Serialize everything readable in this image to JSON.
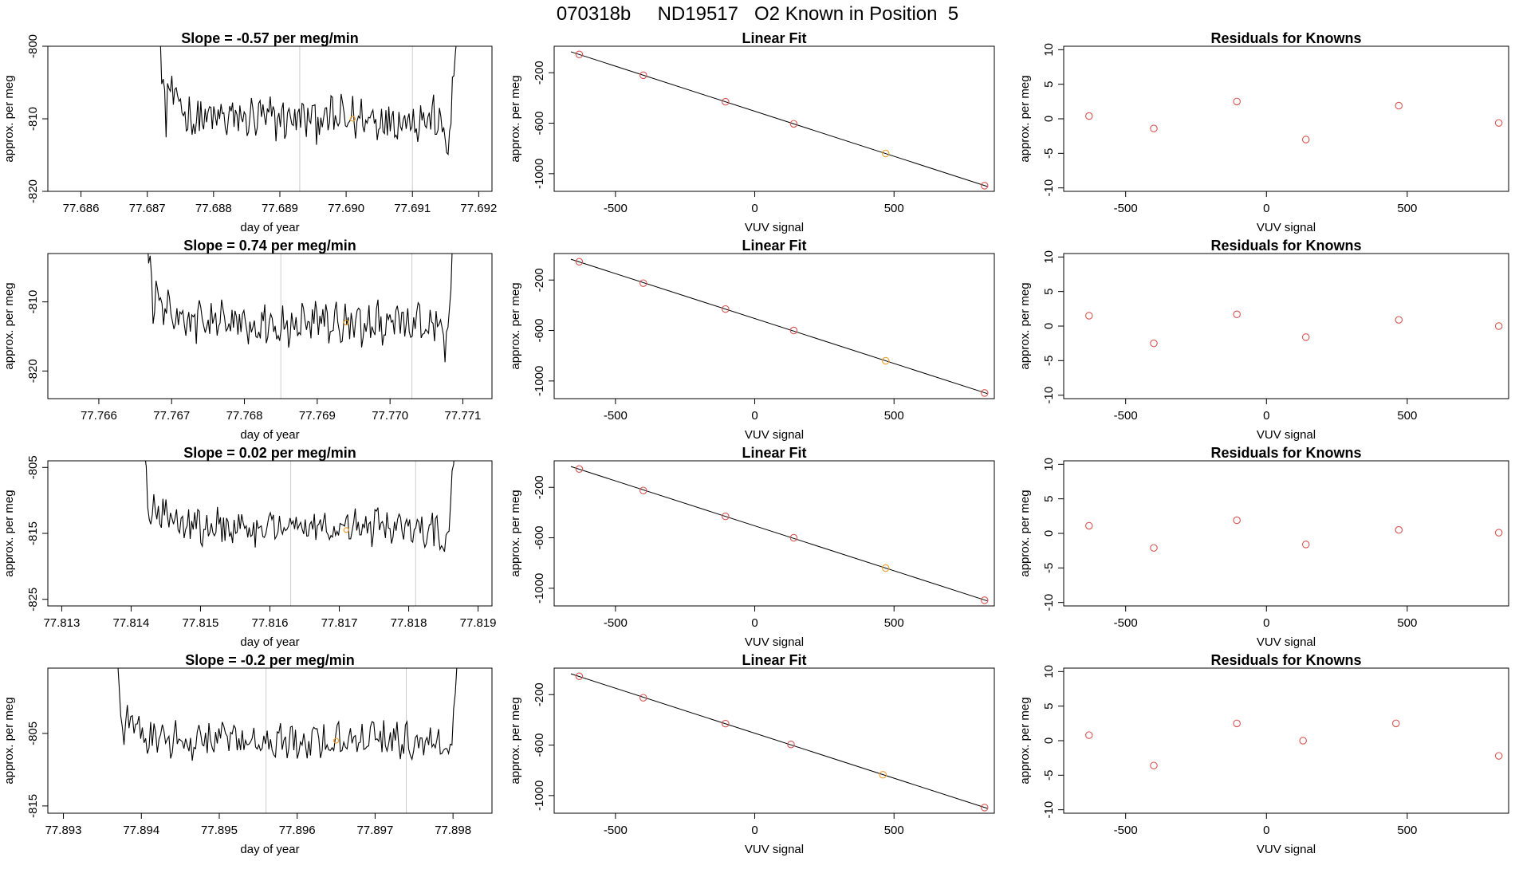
{
  "page": {
    "title": "070318b     ND19517   O2 Known in Position  5"
  },
  "colors": {
    "line": "#000000",
    "fit_point": "#d9534f",
    "highlight": "#f0a030",
    "marker_line": "#cccccc",
    "axis": "#000000"
  },
  "chart_data": [
    {
      "type": "line",
      "row": 0,
      "panel": "time",
      "title": "Slope =  -0.57  per meg/min",
      "xlabel": "day of year",
      "ylabel": "approx. per meg",
      "xlim": [
        77.6855,
        77.6922
      ],
      "ylim": [
        -820,
        -800
      ],
      "xticks": [
        77.686,
        77.687,
        77.688,
        77.689,
        77.69,
        77.691,
        77.692
      ],
      "xtick_labels": [
        "77.686",
        "77.687",
        "77.688",
        "77.689",
        "77.690",
        "77.691",
        "77.692"
      ],
      "yticks": [
        -820,
        -810,
        -800
      ],
      "ytick_labels": [
        "-820",
        "-810",
        "-800"
      ],
      "x_start": 77.687,
      "x_end": 77.6918,
      "baseline": -810,
      "noise": 2.0,
      "markers": [
        77.6893,
        77.691
      ],
      "highlight": [
        77.6901,
        -810
      ]
    },
    {
      "type": "scatter",
      "row": 0,
      "panel": "fit",
      "title": "Linear Fit",
      "xlabel": "VUV signal",
      "ylabel": "approx. per meg",
      "xlim": [
        -720,
        860
      ],
      "ylim": [
        -1140,
        10
      ],
      "xticks": [
        -500,
        0,
        500
      ],
      "xtick_labels": [
        "-500",
        "0",
        "500"
      ],
      "yticks": [
        -200,
        -600,
        -1000
      ],
      "ytick_labels": [
        "-200",
        "-600",
        "-1000"
      ],
      "x": [
        -630,
        -400,
        -105,
        140,
        470,
        825
      ],
      "y": [
        -55,
        -220,
        -430,
        -605,
        -840,
        -1095
      ],
      "highlight_index": 4
    },
    {
      "type": "scatter",
      "row": 0,
      "panel": "resid",
      "title": "Residuals for Knowns",
      "xlabel": "VUV signal",
      "ylabel": "approx. per meg",
      "xlim": [
        -720,
        860
      ],
      "ylim": [
        -10.5,
        10.5
      ],
      "xticks": [
        -500,
        0,
        500
      ],
      "xtick_labels": [
        "-500",
        "0",
        "500"
      ],
      "yticks": [
        -10,
        -5,
        0,
        5,
        10
      ],
      "ytick_labels": [
        "-10",
        "-5",
        "0",
        "5",
        "10"
      ],
      "x": [
        -630,
        -400,
        -105,
        140,
        470,
        825
      ],
      "y": [
        0.4,
        -1.4,
        2.5,
        -3.0,
        1.9,
        -0.6
      ]
    },
    {
      "type": "line",
      "row": 1,
      "panel": "time",
      "title": "Slope =  0.74  per meg/min",
      "xlabel": "day of year",
      "ylabel": "approx. per meg",
      "xlim": [
        77.7653,
        77.7714
      ],
      "ylim": [
        -824,
        -803
      ],
      "xticks": [
        77.766,
        77.767,
        77.768,
        77.769,
        77.77,
        77.771
      ],
      "xtick_labels": [
        "77.766",
        "77.767",
        "77.768",
        "77.769",
        "77.770",
        "77.771"
      ],
      "yticks": [
        -820,
        -810
      ],
      "ytick_labels": [
        "-820",
        "-810"
      ],
      "x_start": 77.7665,
      "x_end": 77.771,
      "baseline": -813,
      "noise": 2.0,
      "markers": [
        77.7685,
        77.7703
      ],
      "highlight": [
        77.7694,
        -813
      ]
    },
    {
      "type": "scatter",
      "row": 1,
      "panel": "fit",
      "title": "Linear Fit",
      "xlabel": "VUV signal",
      "ylabel": "approx. per meg",
      "xlim": [
        -720,
        860
      ],
      "ylim": [
        -1140,
        10
      ],
      "xticks": [
        -500,
        0,
        500
      ],
      "xtick_labels": [
        "-500",
        "0",
        "500"
      ],
      "yticks": [
        -200,
        -600,
        -1000
      ],
      "ytick_labels": [
        "-200",
        "-600",
        "-1000"
      ],
      "x": [
        -630,
        -400,
        -105,
        140,
        470,
        825
      ],
      "y": [
        -55,
        -225,
        -430,
        -600,
        -840,
        -1095
      ],
      "highlight_index": 4
    },
    {
      "type": "scatter",
      "row": 1,
      "panel": "resid",
      "title": "Residuals for Knowns",
      "xlabel": "VUV signal",
      "ylabel": "approx. per meg",
      "xlim": [
        -720,
        860
      ],
      "ylim": [
        -10.5,
        10.5
      ],
      "xticks": [
        -500,
        0,
        500
      ],
      "xtick_labels": [
        "-500",
        "0",
        "500"
      ],
      "yticks": [
        -10,
        -5,
        0,
        5,
        10
      ],
      "ytick_labels": [
        "-10",
        "-5",
        "0",
        "5",
        "10"
      ],
      "x": [
        -630,
        -400,
        -105,
        140,
        470,
        825
      ],
      "y": [
        1.5,
        -2.5,
        1.7,
        -1.6,
        0.9,
        0.0
      ]
    },
    {
      "type": "line",
      "row": 2,
      "panel": "time",
      "title": "Slope =  0.02  per meg/min",
      "xlabel": "day of year",
      "ylabel": "approx. per meg",
      "xlim": [
        77.8128,
        77.8192
      ],
      "ylim": [
        -826,
        -804
      ],
      "xticks": [
        77.813,
        77.814,
        77.815,
        77.816,
        77.817,
        77.818,
        77.819
      ],
      "xtick_labels": [
        "77.813",
        "77.814",
        "77.815",
        "77.816",
        "77.817",
        "77.818",
        "77.819"
      ],
      "yticks": [
        -825,
        -815,
        -805
      ],
      "ytick_labels": [
        "-825",
        "-815",
        "-805"
      ],
      "x_start": 77.814,
      "x_end": 77.8188,
      "baseline": -814,
      "noise": 1.8,
      "markers": [
        77.8163,
        77.8181
      ],
      "highlight": [
        77.8171,
        -814.5
      ]
    },
    {
      "type": "scatter",
      "row": 2,
      "panel": "fit",
      "title": "Linear Fit",
      "xlabel": "VUV signal",
      "ylabel": "approx. per meg",
      "xlim": [
        -720,
        860
      ],
      "ylim": [
        -1140,
        10
      ],
      "xticks": [
        -500,
        0,
        500
      ],
      "xtick_labels": [
        "-500",
        "0",
        "500"
      ],
      "yticks": [
        -200,
        -600,
        -1000
      ],
      "ytick_labels": [
        "-200",
        "-600",
        "-1000"
      ],
      "x": [
        -630,
        -400,
        -105,
        140,
        470,
        825
      ],
      "y": [
        -55,
        -225,
        -430,
        -600,
        -840,
        -1095
      ],
      "highlight_index": 4
    },
    {
      "type": "scatter",
      "row": 2,
      "panel": "resid",
      "title": "Residuals for Knowns",
      "xlabel": "VUV signal",
      "ylabel": "approx. per meg",
      "xlim": [
        -720,
        860
      ],
      "ylim": [
        -10.5,
        10.5
      ],
      "xticks": [
        -500,
        0,
        500
      ],
      "xtick_labels": [
        "-500",
        "0",
        "500"
      ],
      "yticks": [
        -10,
        -5,
        0,
        5,
        10
      ],
      "ytick_labels": [
        "-10",
        "-5",
        "0",
        "5",
        "10"
      ],
      "x": [
        -630,
        -400,
        -105,
        140,
        470,
        825
      ],
      "y": [
        1.1,
        -2.1,
        1.9,
        -1.6,
        0.5,
        0.1
      ]
    },
    {
      "type": "line",
      "row": 3,
      "panel": "time",
      "title": "Slope =  -0.2  per meg/min",
      "xlabel": "day of year",
      "ylabel": "approx. per meg",
      "xlim": [
        77.8928,
        77.8985
      ],
      "ylim": [
        -816,
        -796
      ],
      "xticks": [
        77.893,
        77.894,
        77.895,
        77.896,
        77.897,
        77.898
      ],
      "xtick_labels": [
        "77.893",
        "77.894",
        "77.895",
        "77.896",
        "77.897",
        "77.898"
      ],
      "yticks": [
        -815,
        -805
      ],
      "ytick_labels": [
        "-815",
        "-805"
      ],
      "x_start": 77.8935,
      "x_end": 77.8982,
      "baseline": -806,
      "noise": 1.6,
      "markers": [
        77.8956,
        77.8974
      ],
      "highlight": [
        77.8965,
        -806
      ]
    },
    {
      "type": "scatter",
      "row": 3,
      "panel": "fit",
      "title": "Linear Fit",
      "xlabel": "VUV signal",
      "ylabel": "approx. per meg",
      "xlim": [
        -720,
        860
      ],
      "ylim": [
        -1140,
        10
      ],
      "xticks": [
        -500,
        0,
        500
      ],
      "xtick_labels": [
        "-500",
        "0",
        "500"
      ],
      "yticks": [
        -200,
        -600,
        -1000
      ],
      "ytick_labels": [
        "-200",
        "-600",
        "-1000"
      ],
      "x": [
        -630,
        -400,
        -105,
        130,
        460,
        825
      ],
      "y": [
        -55,
        -225,
        -430,
        -595,
        -835,
        -1095
      ],
      "highlight_index": 4
    },
    {
      "type": "scatter",
      "row": 3,
      "panel": "resid",
      "title": "Residuals for Knowns",
      "xlabel": "VUV signal",
      "ylabel": "approx. per meg",
      "xlim": [
        -720,
        860
      ],
      "ylim": [
        -10.5,
        10.5
      ],
      "xticks": [
        -500,
        0,
        500
      ],
      "xtick_labels": [
        "-500",
        "0",
        "500"
      ],
      "yticks": [
        -10,
        -5,
        0,
        5,
        10
      ],
      "ytick_labels": [
        "-10",
        "-5",
        "0",
        "5",
        "10"
      ],
      "x": [
        -630,
        -400,
        -105,
        130,
        460,
        825
      ],
      "y": [
        0.8,
        -3.6,
        2.5,
        0.0,
        2.5,
        -2.2
      ]
    }
  ]
}
